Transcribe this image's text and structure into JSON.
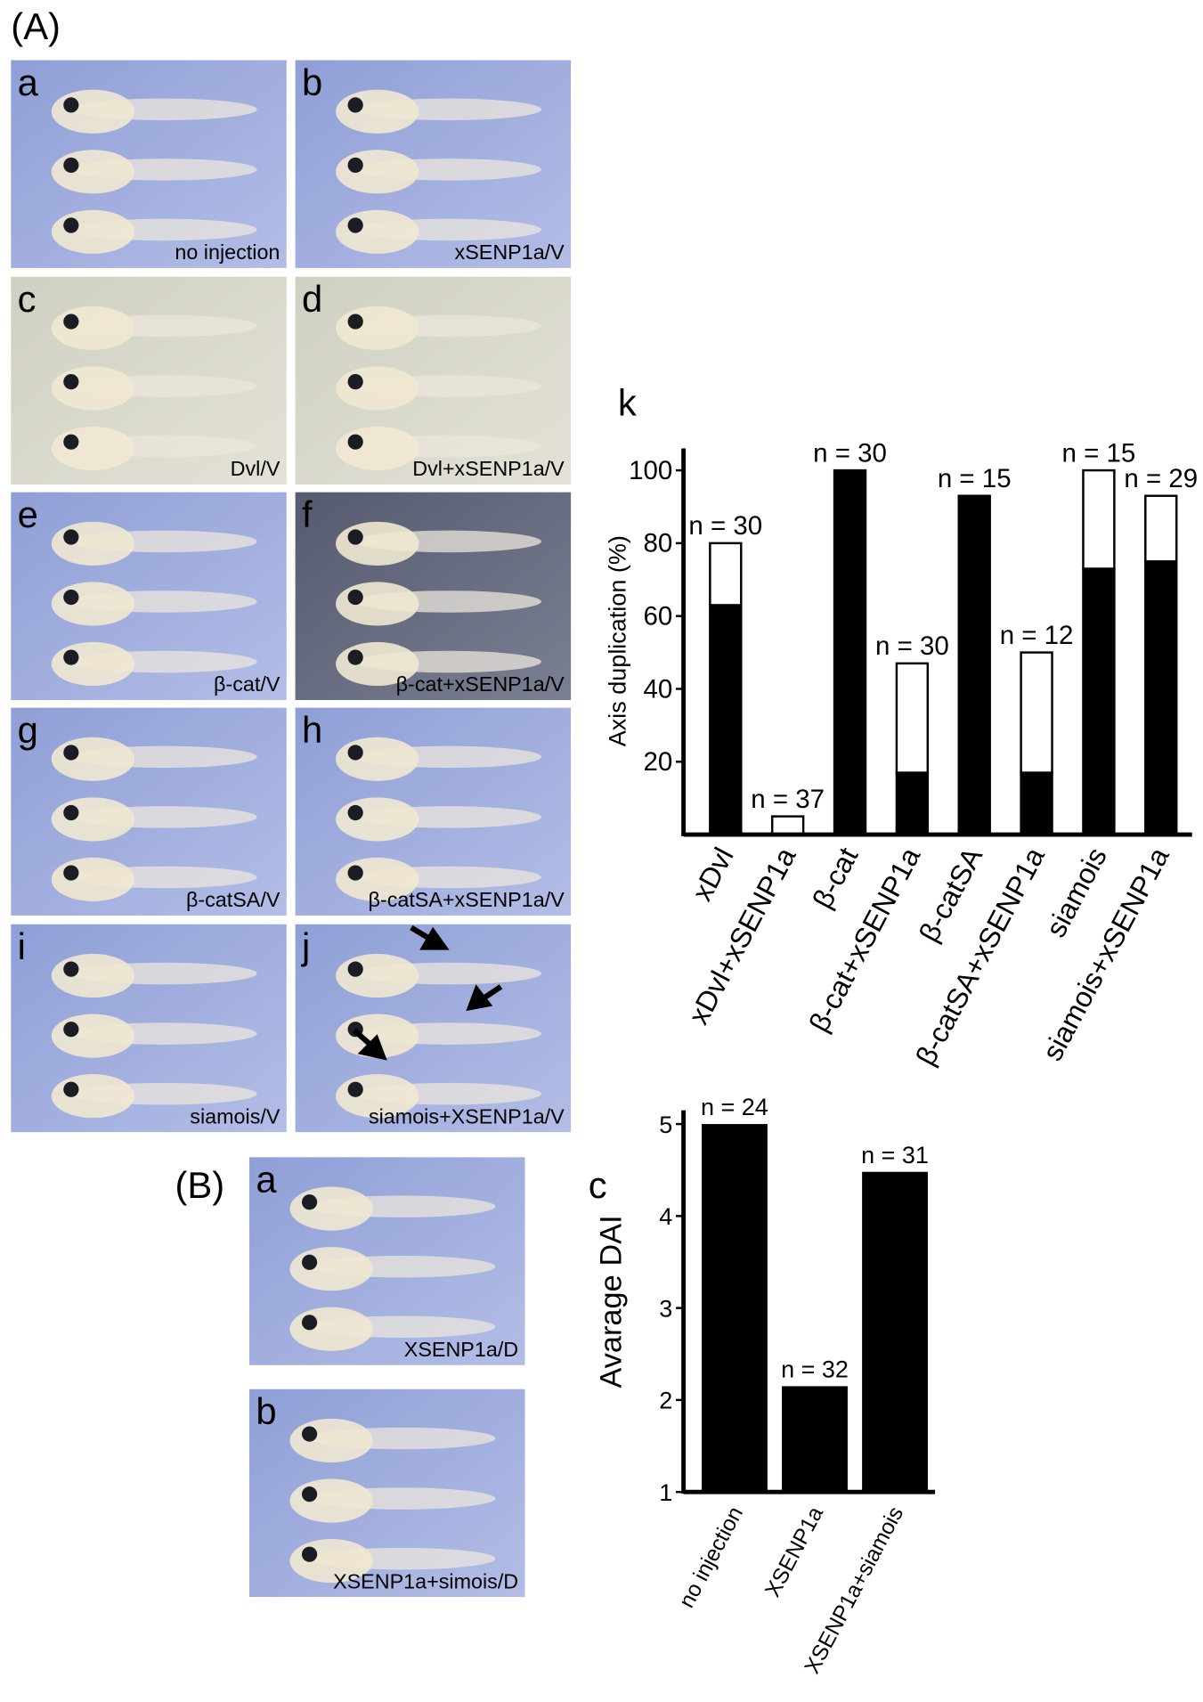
{
  "figure_labels": {
    "A": "(A)",
    "B": "(B)"
  },
  "panels_A": [
    {
      "letter": "a",
      "caption": "no injection"
    },
    {
      "letter": "b",
      "caption": "xSENP1a/V"
    },
    {
      "letter": "c",
      "caption": "Dvl/V"
    },
    {
      "letter": "d",
      "caption": "Dvl+xSENP1a/V"
    },
    {
      "letter": "e",
      "caption": "β-cat/V"
    },
    {
      "letter": "f",
      "caption": "β-cat+xSENP1a/V"
    },
    {
      "letter": "g",
      "caption": "β-catSA/V"
    },
    {
      "letter": "h",
      "caption": "β-catSA+xSENP1a/V"
    },
    {
      "letter": "i",
      "caption": "siamois/V"
    },
    {
      "letter": "j",
      "caption": "siamois+XSENP1a/V"
    }
  ],
  "panels_B": [
    {
      "letter": "a",
      "caption": "XSENP1a/D"
    },
    {
      "letter": "b",
      "caption": "XSENP1a+simois/D"
    }
  ],
  "chart_data": [
    {
      "type": "bar",
      "stacked": true,
      "panel_letter": "k",
      "ylabel": "Axis duplication (%)",
      "categories": [
        "xDvl",
        "xDvl+xSENP1a",
        "β-cat",
        "β-cat+xSENP1a",
        "β-catSA",
        "β-catSA+xSENP1a",
        "siamois",
        "siamois+xSENP1a"
      ],
      "series": [
        {
          "color": "#000000",
          "values": [
            63,
            0,
            100,
            17,
            93,
            17,
            73,
            75
          ]
        },
        {
          "color": "#ffffff",
          "values": [
            17,
            5,
            0,
            30,
            0,
            33,
            27,
            18
          ]
        }
      ],
      "annotations": [
        "n = 30",
        "n = 37",
        "n = 30",
        "n = 30",
        "n = 15",
        "n = 12",
        "n = 15",
        "n = 29"
      ],
      "ylim": [
        0,
        106
      ],
      "yticks": [
        20,
        40,
        60,
        80,
        100
      ]
    },
    {
      "type": "bar",
      "panel_letter": "c",
      "ylabel": "Avarage DAI",
      "categories": [
        "no injection",
        "XSENP1a",
        "XSENP1a+siamois"
      ],
      "values": [
        5,
        2.15,
        4.48
      ],
      "color": "#000000",
      "annotations": [
        "n = 24",
        "n = 32",
        "n = 31"
      ],
      "ylim": [
        1,
        5.15
      ],
      "yticks": [
        1,
        2,
        3,
        4,
        5
      ]
    }
  ]
}
